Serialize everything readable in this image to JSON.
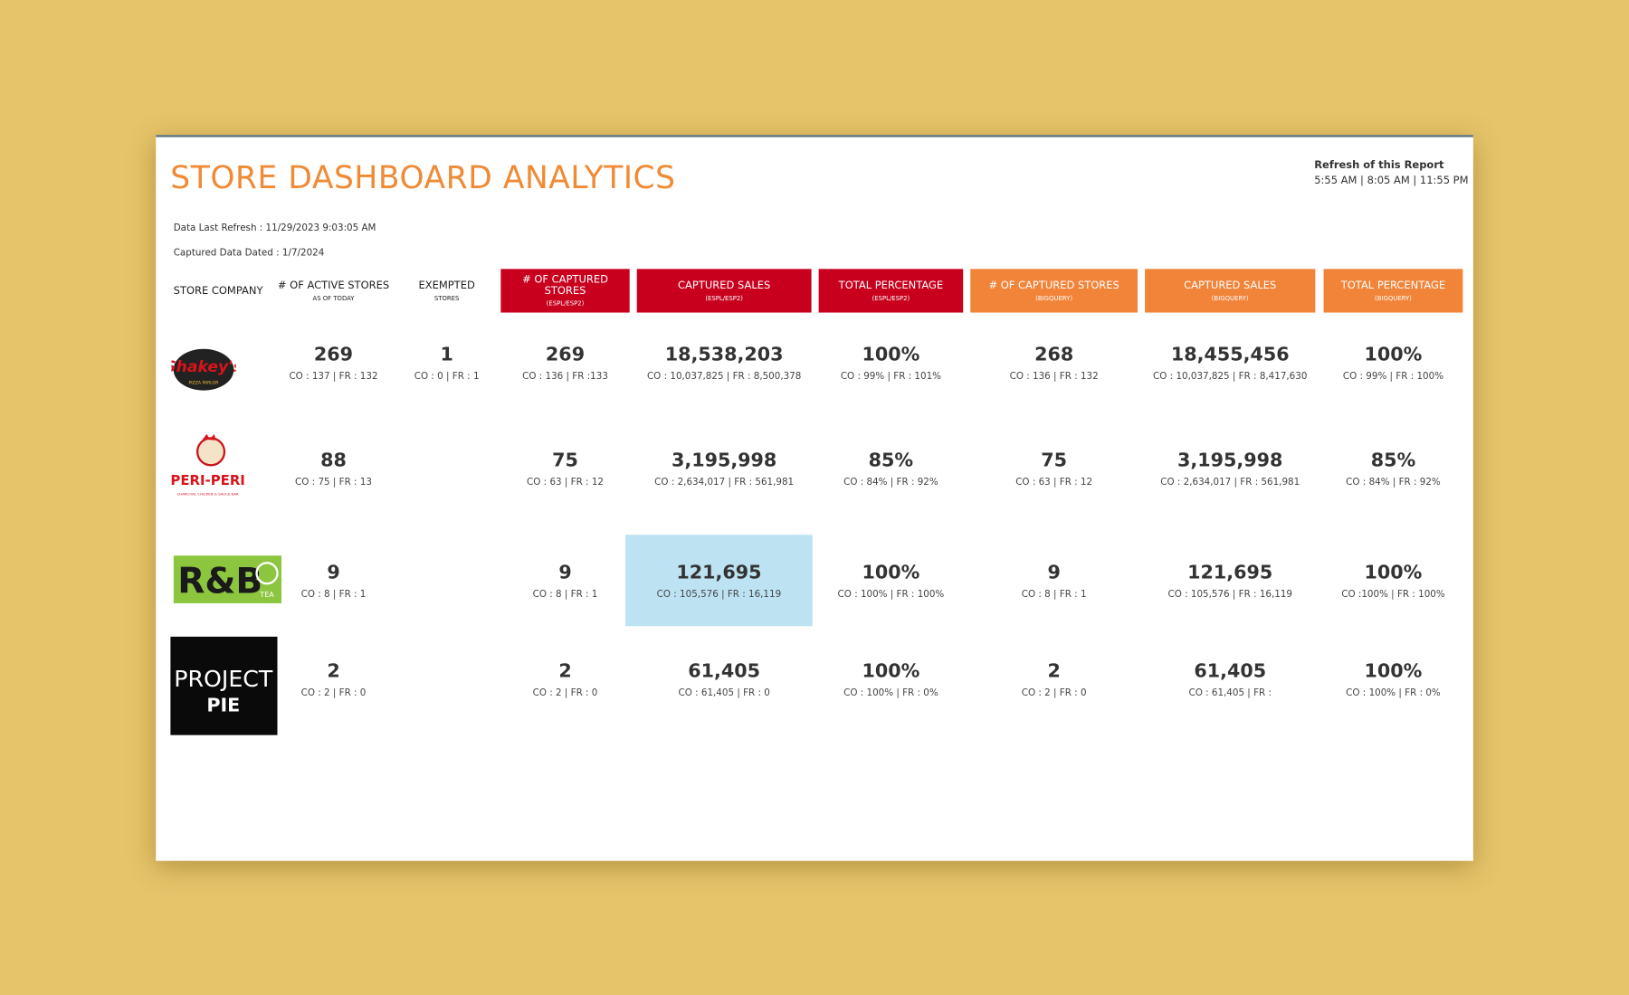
{
  "header": {
    "title": "STORE DASHBOARD ANALYTICS",
    "refresh_label": "Refresh of this Report",
    "refresh_times": "5:55 AM | 8:05 AM | 11:55 PM",
    "data_last_refresh": "Data Last Refresh : 11/29/2023 9:03:05 AM",
    "captured_dated": "Captured Data  Dated : 1/7/2024"
  },
  "table": {
    "columns": [
      {
        "title": "STORE COMPANY"
      },
      {
        "title": "# OF ACTIVE STORES",
        "subtitle": "AS OF TODAY"
      },
      {
        "title": "EXEMPTED",
        "subtitle": "STORES"
      },
      {
        "title": "# OF CAPTURED STORES",
        "subtitle": "(ESPL/ESP2)",
        "color": "#c8001e"
      },
      {
        "title": "CAPTURED SALES",
        "subtitle": "(ESPL/ESP2)",
        "color": "#c8001e"
      },
      {
        "title": "TOTAL PERCENTAGE",
        "subtitle": "(ESPL/ESP2)",
        "color": "#c8001e"
      },
      {
        "title": "# OF CAPTURED STORES",
        "subtitle": "(BIGQUERY)",
        "color": "#f2843a"
      },
      {
        "title": "CAPTURED SALES",
        "subtitle": "(BIGQUERY)",
        "color": "#f2843a"
      },
      {
        "title": "TOTAL PERCENTAGE",
        "subtitle": "(BIGQUERY)",
        "color": "#f2843a"
      }
    ],
    "rows": [
      {
        "logo": [
          "Shakey's",
          "PIZZA PARLOR"
        ],
        "cells": [
          {
            "main": "269",
            "sub": "CO : 137 | FR :  132"
          },
          {
            "main": "1",
            "sub": "CO : 0  | FR :  1"
          },
          {
            "main": "269",
            "sub": "CO : 136 | FR :133"
          },
          {
            "main": "18,538,203",
            "sub": "CO : 10,037,825  | FR : 8,500,378"
          },
          {
            "main": "100%",
            "sub": "CO : 99% | FR :  101%"
          },
          {
            "main": "268",
            "sub": "CO : 136 | FR : 132"
          },
          {
            "main": "18,455,456",
            "sub": "CO : 10,037,825 | FR : 8,417,630"
          },
          {
            "main": "100%",
            "sub": "CO : 99% | FR : 100%"
          }
        ]
      },
      {
        "logo": [
          "PERI-PERI",
          "CHARCOAL CHICKEN & SAUCE BAR"
        ],
        "cells": [
          {
            "main": "88",
            "sub": "CO : 75 | FR :  13"
          },
          null,
          {
            "main": "75",
            "sub": "CO : 63  | FR : 12"
          },
          {
            "main": "3,195,998",
            "sub": "CO : 2,634,017  | FR : 561,981"
          },
          {
            "main": "85%",
            "sub": "CO : 84% | FR : 92%"
          },
          {
            "main": "75",
            "sub": "CO : 63 | FR : 12"
          },
          {
            "main": "3,195,998",
            "sub": "CO : 2,634,017 | FR : 561,981"
          },
          {
            "main": "85%",
            "sub": "CO : 84% | FR : 92%"
          }
        ]
      },
      {
        "logo": [
          "R&B",
          "TEA"
        ],
        "cells": [
          {
            "main": "9",
            "sub": "CO : 8 | FR :  1"
          },
          null,
          {
            "main": "9",
            "sub": "CO : 8 | FR : 1"
          },
          {
            "main": "121,695",
            "sub": "CO : 105,576  | FR : 16,119",
            "selected": true
          },
          {
            "main": "100%",
            "sub": "CO : 100% | FR : 100%"
          },
          {
            "main": "9",
            "sub": "CO : 8 | FR : 1"
          },
          {
            "main": "121,695",
            "sub": "CO : 105,576 | FR : 16,119"
          },
          {
            "main": "100%",
            "sub": "CO :100% | FR : 100%"
          }
        ]
      },
      {
        "logo": [
          "PROJECT",
          "PIE"
        ],
        "cells": [
          {
            "main": "2",
            "sub": "CO : 2 | FR :  0"
          },
          null,
          {
            "main": "2",
            "sub": "CO : 2 | FR : 0"
          },
          {
            "main": "61,405",
            "sub": "CO : 61,405  | FR : 0"
          },
          {
            "main": "100%",
            "sub": "CO : 100% | FR : 0%"
          },
          {
            "main": "2",
            "sub": "CO : 2 | FR : 0"
          },
          {
            "main": "61,405",
            "sub": "CO : 61,405 | FR :"
          },
          {
            "main": "100%",
            "sub": "CO : 100% | FR : 0%"
          }
        ]
      }
    ]
  }
}
